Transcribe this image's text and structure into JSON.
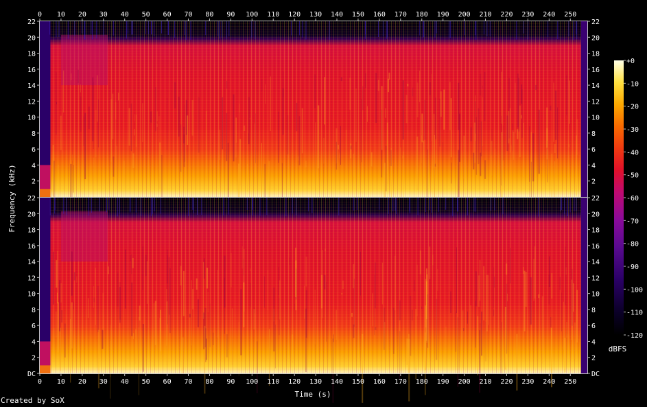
{
  "chart_data": {
    "type": "heatmap",
    "subtype": "spectrogram",
    "xlabel": "Time (s)",
    "ylabel": "Frequency (kHz)",
    "x_ticks": [
      "0",
      "10",
      "20",
      "30",
      "40",
      "50",
      "60",
      "70",
      "80",
      "90",
      "100",
      "110",
      "120",
      "130",
      "140",
      "150",
      "160",
      "170",
      "180",
      "190",
      "200",
      "210",
      "220",
      "230",
      "240",
      "250"
    ],
    "xlim": [
      0,
      258
    ],
    "y_ticks_top": [
      "2",
      "4",
      "6",
      "8",
      "10",
      "12",
      "14",
      "16",
      "18",
      "20",
      "22"
    ],
    "y_ticks_bottom": [
      "DC",
      "2",
      "4",
      "6",
      "8",
      "10",
      "12",
      "14",
      "16",
      "18",
      "20",
      "22"
    ],
    "ylim": [
      0,
      22
    ],
    "channels": [
      "left",
      "right"
    ],
    "colorbar": {
      "label": "dBFS",
      "ticks": [
        "+0",
        "-10",
        "-20",
        "-30",
        "-40",
        "-50",
        "-60",
        "-70",
        "-80",
        "-90",
        "-100",
        "-110",
        "-120"
      ],
      "range": [
        -120,
        0
      ]
    },
    "colors": {
      "background": "#000000",
      "low": "#000000",
      "mid": "#e01020",
      "high": "#ffffe8"
    }
  },
  "credit": "Created by SoX"
}
